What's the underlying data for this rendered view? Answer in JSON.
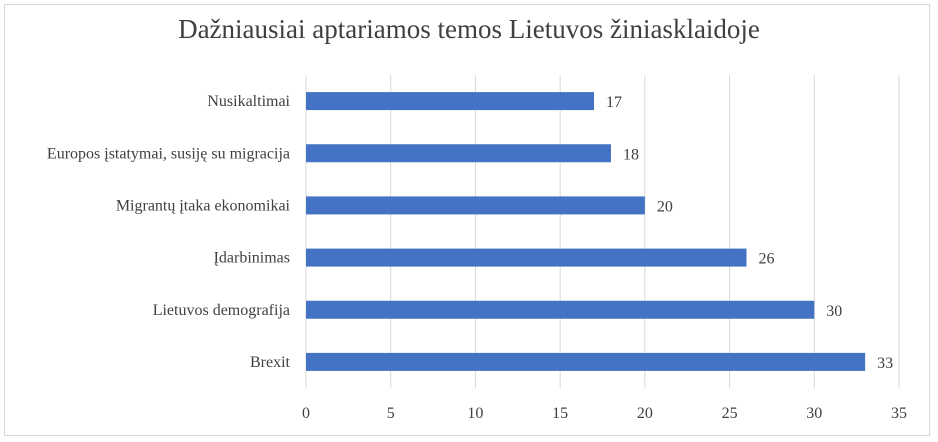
{
  "chart_data": {
    "type": "bar",
    "orientation": "horizontal",
    "title": "Dažniausiai aptariamos temos Lietuvos žiniasklaidoje",
    "categories": [
      "Nusikaltimai",
      "Europos įstatymai, susiję su migracija",
      "Migrantų įtaka ekonomikai",
      "Įdarbinimas",
      "Lietuvos demografija",
      "Brexit"
    ],
    "values": [
      17,
      18,
      20,
      26,
      30,
      33
    ],
    "xlim": [
      0,
      35
    ],
    "xticks": [
      "0",
      "5",
      "10",
      "15",
      "20",
      "25",
      "30",
      "35"
    ],
    "grid": true,
    "data_labels": true,
    "bar_color": "#4472c4",
    "grid_color": "#d9d9d9"
  }
}
